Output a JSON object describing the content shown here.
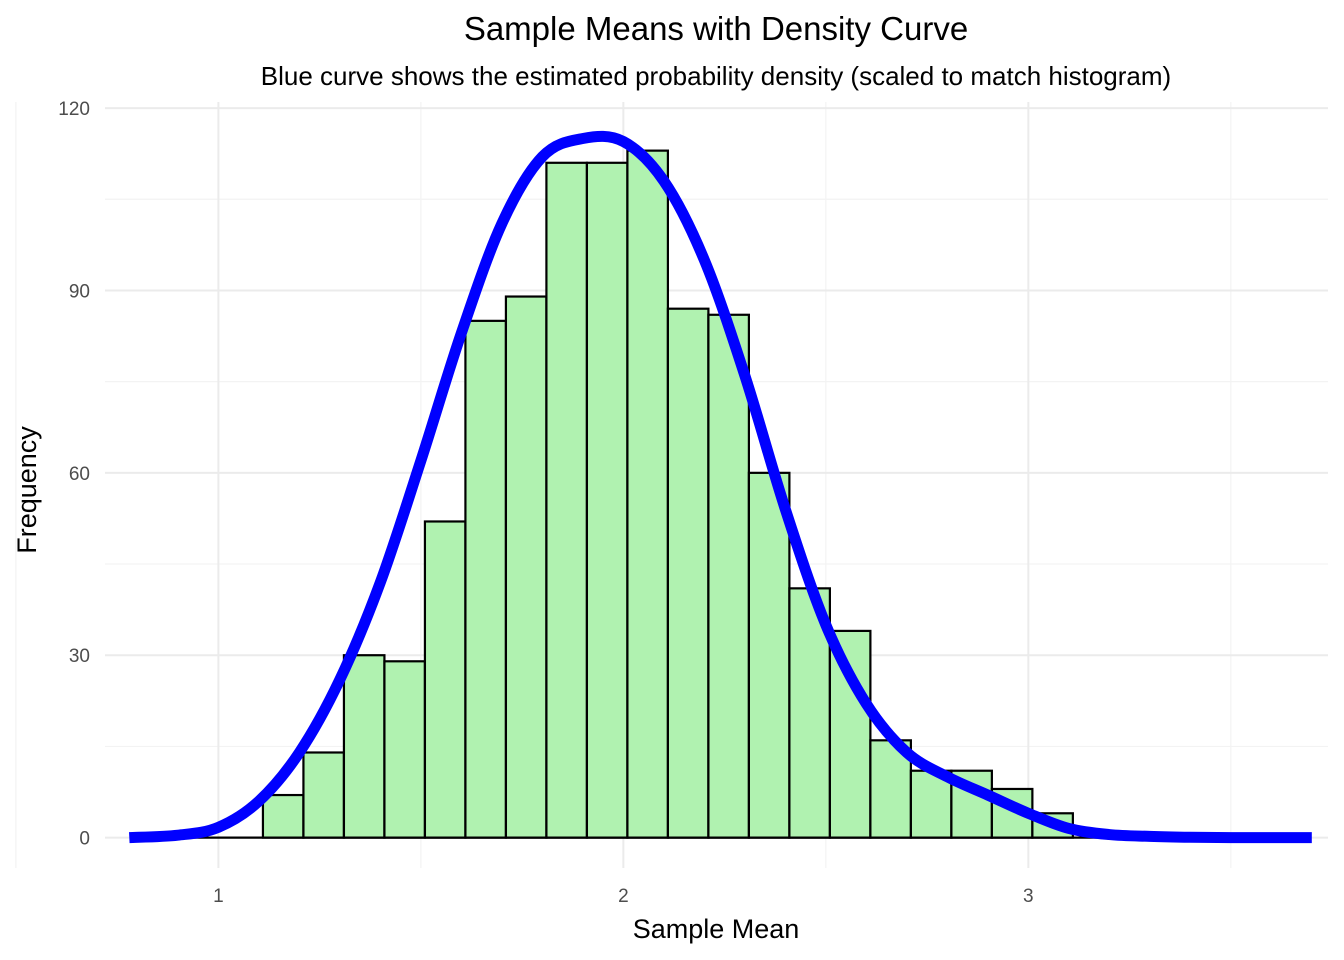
{
  "chart_data": {
    "type": "bar",
    "title": "Sample Means with Density Curve",
    "subtitle": "Blue curve shows the estimated probability density (scaled to match histogram)",
    "xlabel": "Sample Mean",
    "ylabel": "Frequency",
    "xlim": [
      0.72,
      3.74
    ],
    "ylim": [
      -5,
      121
    ],
    "x_ticks": [
      1,
      2,
      3
    ],
    "y_ticks": [
      0,
      30,
      60,
      90,
      120
    ],
    "grid": true,
    "bar_fill": "#b0f2b0",
    "bar_outline": "#000000",
    "bins": [
      {
        "x0": 1.11,
        "x1": 1.21,
        "count": 7
      },
      {
        "x0": 1.21,
        "x1": 1.31,
        "count": 14
      },
      {
        "x0": 1.31,
        "x1": 1.41,
        "count": 30
      },
      {
        "x0": 1.41,
        "x1": 1.51,
        "count": 29
      },
      {
        "x0": 1.51,
        "x1": 1.61,
        "count": 52
      },
      {
        "x0": 1.61,
        "x1": 1.71,
        "count": 85
      },
      {
        "x0": 1.71,
        "x1": 1.81,
        "count": 89
      },
      {
        "x0": 1.81,
        "x1": 1.91,
        "count": 111
      },
      {
        "x0": 1.91,
        "x1": 2.01,
        "count": 111
      },
      {
        "x0": 2.01,
        "x1": 2.11,
        "count": 113
      },
      {
        "x0": 2.11,
        "x1": 2.21,
        "count": 87
      },
      {
        "x0": 2.21,
        "x1": 2.31,
        "count": 86
      },
      {
        "x0": 2.31,
        "x1": 2.41,
        "count": 60
      },
      {
        "x0": 2.41,
        "x1": 2.51,
        "count": 41
      },
      {
        "x0": 2.51,
        "x1": 2.61,
        "count": 34
      },
      {
        "x0": 2.61,
        "x1": 2.71,
        "count": 16
      },
      {
        "x0": 2.71,
        "x1": 2.81,
        "count": 11
      },
      {
        "x0": 2.81,
        "x1": 2.91,
        "count": 11
      },
      {
        "x0": 2.91,
        "x1": 3.01,
        "count": 8
      },
      {
        "x0": 3.01,
        "x1": 3.11,
        "count": 4
      },
      {
        "x0": 3.11,
        "x1": 3.21,
        "count": 0
      },
      {
        "x0": 3.21,
        "x1": 3.31,
        "count": 0
      }
    ],
    "baseline_range": [
      0.72,
      3.74
    ],
    "density_curve": {
      "color": "#0000ff",
      "x": [
        0.78,
        0.9,
        1.0,
        1.1,
        1.2,
        1.3,
        1.4,
        1.5,
        1.6,
        1.7,
        1.8,
        1.9,
        2.0,
        2.1,
        2.2,
        2.3,
        2.4,
        2.5,
        2.6,
        2.7,
        2.8,
        2.9,
        3.0,
        3.1,
        3.2,
        3.3,
        3.4,
        3.5,
        3.6,
        3.7
      ],
      "y": [
        0.0,
        0.4,
        1.7,
        6.0,
        14.0,
        26.0,
        42.0,
        62.0,
        83.0,
        101.0,
        112.0,
        115.0,
        114.5,
        108.0,
        95.0,
        76.0,
        54.0,
        35.0,
        22.0,
        14.0,
        10.0,
        7.0,
        4.0,
        1.5,
        0.5,
        0.2,
        0.05,
        0.0,
        0.0,
        0.0
      ]
    }
  }
}
